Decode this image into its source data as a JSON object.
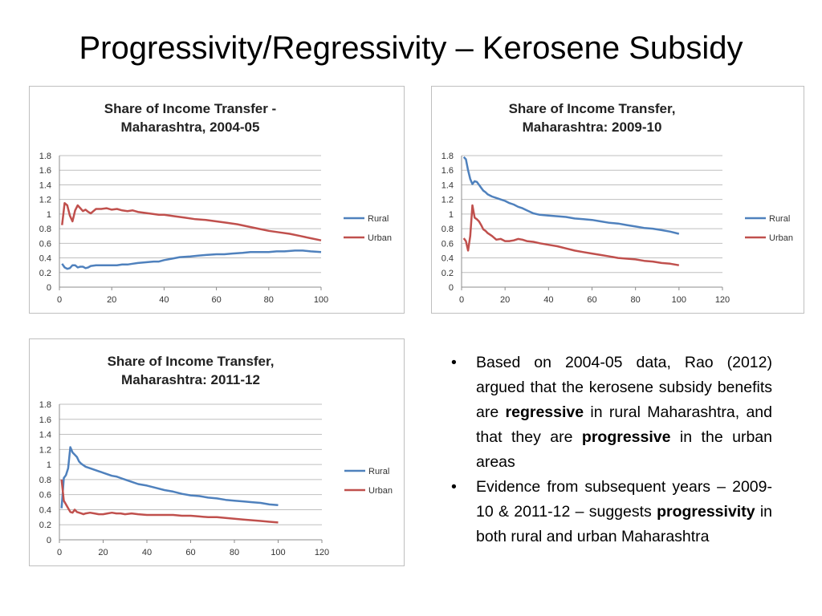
{
  "slide": {
    "title": "Progressivity/Regressivity – Kerosene Subsidy"
  },
  "bullets": [
    {
      "parts": [
        {
          "text": "Based on 2004-05 data, Rao (2012) argued that the kerosene subsidy benefits are ",
          "bold": false
        },
        {
          "text": "regressive",
          "bold": true
        },
        {
          "text": " in rural Maharashtra, and that they are ",
          "bold": false
        },
        {
          "text": "progressive",
          "bold": true
        },
        {
          "text": " in the urban areas",
          "bold": false
        }
      ]
    },
    {
      "parts": [
        {
          "text": "Evidence from subsequent years – 2009-10 & 2011-12 – suggests ",
          "bold": false
        },
        {
          "text": "progressivity",
          "bold": true
        },
        {
          "text": " in both rural and urban Maharashtra",
          "bold": false
        }
      ]
    }
  ],
  "colors": {
    "rural": "#4f81bd",
    "urban": "#c0504d",
    "grid": "#bfbfbf"
  },
  "chart_data": [
    {
      "type": "line",
      "title": [
        "Share of Income Transfer -",
        "Maharashtra, 2004-05"
      ],
      "xlim": [
        0,
        100
      ],
      "xticks": [
        0,
        20,
        40,
        60,
        80,
        100
      ],
      "ylim": [
        0,
        1.8
      ],
      "yticks": [
        0,
        0.2,
        0.4,
        0.6,
        0.8,
        1,
        1.2,
        1.4,
        1.6,
        1.8
      ],
      "grid": true,
      "legend": "right",
      "series": [
        {
          "name": "Rural",
          "x": [
            1,
            2,
            3,
            4,
            5,
            6,
            7,
            8,
            9,
            10,
            11,
            12,
            14,
            16,
            18,
            20,
            22,
            24,
            26,
            28,
            30,
            33,
            36,
            38,
            40,
            43,
            46,
            50,
            53,
            56,
            60,
            63,
            66,
            70,
            73,
            76,
            80,
            83,
            86,
            90,
            93,
            96,
            100
          ],
          "y": [
            0.32,
            0.27,
            0.25,
            0.26,
            0.3,
            0.3,
            0.27,
            0.28,
            0.28,
            0.26,
            0.27,
            0.29,
            0.3,
            0.3,
            0.3,
            0.3,
            0.3,
            0.31,
            0.31,
            0.32,
            0.33,
            0.34,
            0.35,
            0.35,
            0.37,
            0.39,
            0.41,
            0.42,
            0.43,
            0.44,
            0.45,
            0.45,
            0.46,
            0.47,
            0.48,
            0.48,
            0.48,
            0.49,
            0.49,
            0.5,
            0.5,
            0.49,
            0.48
          ]
        },
        {
          "name": "Urban",
          "x": [
            1,
            2,
            3,
            4,
            5,
            6,
            7,
            8,
            9,
            10,
            11,
            12,
            13,
            14,
            16,
            18,
            20,
            22,
            24,
            26,
            28,
            30,
            34,
            38,
            40,
            44,
            48,
            52,
            56,
            60,
            64,
            68,
            72,
            76,
            80,
            84,
            88,
            92,
            96,
            100
          ],
          "y": [
            0.85,
            1.15,
            1.12,
            0.98,
            0.9,
            1.05,
            1.12,
            1.08,
            1.04,
            1.06,
            1.03,
            1.01,
            1.04,
            1.07,
            1.07,
            1.08,
            1.06,
            1.07,
            1.05,
            1.04,
            1.05,
            1.03,
            1.01,
            0.99,
            0.99,
            0.97,
            0.95,
            0.93,
            0.92,
            0.9,
            0.88,
            0.86,
            0.83,
            0.8,
            0.77,
            0.75,
            0.73,
            0.7,
            0.67,
            0.64
          ]
        }
      ]
    },
    {
      "type": "line",
      "title": [
        "Share of Income Transfer,",
        "Maharashtra: 2009-10"
      ],
      "xlim": [
        0,
        120
      ],
      "xticks": [
        0,
        20,
        40,
        60,
        80,
        100,
        120
      ],
      "ylim": [
        0,
        1.8
      ],
      "yticks": [
        0,
        0.2,
        0.4,
        0.6,
        0.8,
        1,
        1.2,
        1.4,
        1.6,
        1.8
      ],
      "grid": true,
      "legend": "right",
      "series": [
        {
          "name": "Rural",
          "x": [
            1,
            2,
            3,
            4,
            5,
            6,
            7,
            8,
            9,
            10,
            11,
            12,
            14,
            16,
            18,
            20,
            22,
            24,
            26,
            28,
            30,
            33,
            36,
            40,
            44,
            48,
            52,
            56,
            60,
            64,
            68,
            72,
            76,
            80,
            84,
            88,
            92,
            96,
            100
          ],
          "y": [
            1.78,
            1.75,
            1.6,
            1.48,
            1.41,
            1.45,
            1.44,
            1.4,
            1.36,
            1.32,
            1.3,
            1.27,
            1.24,
            1.22,
            1.2,
            1.18,
            1.15,
            1.13,
            1.1,
            1.08,
            1.05,
            1.01,
            0.99,
            0.98,
            0.97,
            0.96,
            0.94,
            0.93,
            0.92,
            0.9,
            0.88,
            0.87,
            0.85,
            0.83,
            0.81,
            0.8,
            0.78,
            0.76,
            0.73
          ]
        },
        {
          "name": "Urban",
          "x": [
            1,
            2,
            3,
            4,
            5,
            6,
            7,
            8,
            9,
            10,
            11,
            12,
            14,
            16,
            18,
            20,
            22,
            24,
            26,
            28,
            30,
            33,
            36,
            40,
            44,
            48,
            52,
            56,
            60,
            64,
            68,
            72,
            76,
            80,
            84,
            88,
            92,
            96,
            100
          ],
          "y": [
            0.67,
            0.63,
            0.5,
            0.7,
            1.12,
            0.95,
            0.93,
            0.9,
            0.85,
            0.79,
            0.77,
            0.74,
            0.7,
            0.65,
            0.66,
            0.63,
            0.63,
            0.64,
            0.66,
            0.65,
            0.63,
            0.62,
            0.6,
            0.58,
            0.56,
            0.53,
            0.5,
            0.48,
            0.46,
            0.44,
            0.42,
            0.4,
            0.39,
            0.38,
            0.36,
            0.35,
            0.33,
            0.32,
            0.3
          ]
        }
      ]
    },
    {
      "type": "line",
      "title": [
        "Share of Income Transfer,",
        "Maharashtra: 2011-12"
      ],
      "xlim": [
        0,
        120
      ],
      "xticks": [
        0,
        20,
        40,
        60,
        80,
        100,
        120
      ],
      "ylim": [
        0,
        1.8
      ],
      "yticks": [
        0,
        0.2,
        0.4,
        0.6,
        0.8,
        1,
        1.2,
        1.4,
        1.6,
        1.8
      ],
      "grid": true,
      "legend": "right",
      "series": [
        {
          "name": "Rural",
          "x": [
            1,
            2,
            3,
            4,
            5,
            6,
            7,
            8,
            9,
            10,
            11,
            12,
            14,
            16,
            18,
            20,
            22,
            24,
            26,
            28,
            30,
            33,
            36,
            40,
            44,
            48,
            52,
            56,
            60,
            64,
            68,
            72,
            76,
            80,
            84,
            88,
            92,
            96,
            100
          ],
          "y": [
            0.42,
            0.82,
            0.86,
            0.95,
            1.23,
            1.16,
            1.13,
            1.1,
            1.04,
            1.01,
            0.99,
            0.97,
            0.95,
            0.93,
            0.91,
            0.89,
            0.87,
            0.85,
            0.84,
            0.82,
            0.8,
            0.77,
            0.74,
            0.72,
            0.69,
            0.66,
            0.64,
            0.61,
            0.59,
            0.58,
            0.56,
            0.55,
            0.53,
            0.52,
            0.51,
            0.5,
            0.49,
            0.47,
            0.46
          ]
        },
        {
          "name": "Urban",
          "x": [
            1,
            2,
            3,
            4,
            5,
            6,
            7,
            8,
            9,
            10,
            11,
            12,
            14,
            16,
            18,
            20,
            22,
            24,
            26,
            28,
            30,
            33,
            36,
            40,
            44,
            48,
            52,
            56,
            60,
            64,
            68,
            72,
            76,
            80,
            84,
            88,
            92,
            96,
            100
          ],
          "y": [
            0.8,
            0.52,
            0.47,
            0.42,
            0.37,
            0.36,
            0.4,
            0.37,
            0.36,
            0.35,
            0.34,
            0.35,
            0.36,
            0.35,
            0.34,
            0.34,
            0.35,
            0.36,
            0.35,
            0.35,
            0.34,
            0.35,
            0.34,
            0.33,
            0.33,
            0.33,
            0.33,
            0.32,
            0.32,
            0.31,
            0.3,
            0.3,
            0.29,
            0.28,
            0.27,
            0.26,
            0.25,
            0.24,
            0.23
          ]
        }
      ]
    }
  ]
}
